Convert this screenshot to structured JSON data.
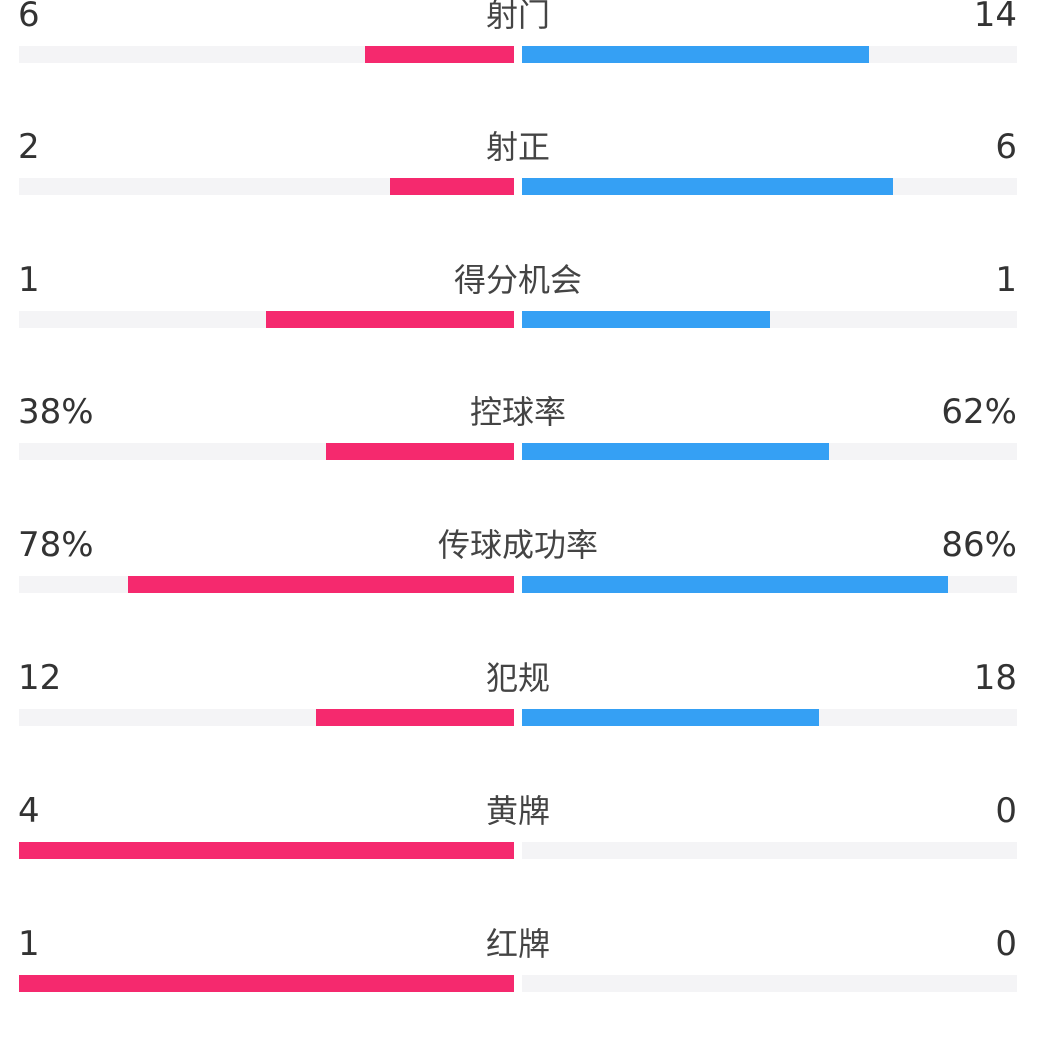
{
  "colors": {
    "home": "#f5296e",
    "away": "#35a0f4",
    "track": "#f4f4f6"
  },
  "chart_data": {
    "type": "bar",
    "orientation": "horizontal-mirrored",
    "categories": [
      "射门",
      "射正",
      "得分机会",
      "控球率",
      "传球成功率",
      "犯规",
      "黄牌",
      "红牌"
    ],
    "rows": [
      {
        "label": "射门",
        "left": "6",
        "right": "14",
        "left_fill": 0.3,
        "right_fill": 0.7
      },
      {
        "label": "射正",
        "left": "2",
        "right": "6",
        "left_fill": 0.25,
        "right_fill": 0.75
      },
      {
        "label": "得分机会",
        "left": "1",
        "right": "1",
        "left_fill": 0.5,
        "right_fill": 0.5
      },
      {
        "label": "控球率",
        "left": "38%",
        "right": "62%",
        "left_fill": 0.38,
        "right_fill": 0.62
      },
      {
        "label": "传球成功率",
        "left": "78%",
        "right": "86%",
        "left_fill": 0.78,
        "right_fill": 0.86
      },
      {
        "label": "犯规",
        "left": "12",
        "right": "18",
        "left_fill": 0.4,
        "right_fill": 0.6
      },
      {
        "label": "黄牌",
        "left": "4",
        "right": "0",
        "left_fill": 1.0,
        "right_fill": 0.0
      },
      {
        "label": "红牌",
        "left": "1",
        "right": "0",
        "left_fill": 1.0,
        "right_fill": 0.0
      }
    ]
  }
}
